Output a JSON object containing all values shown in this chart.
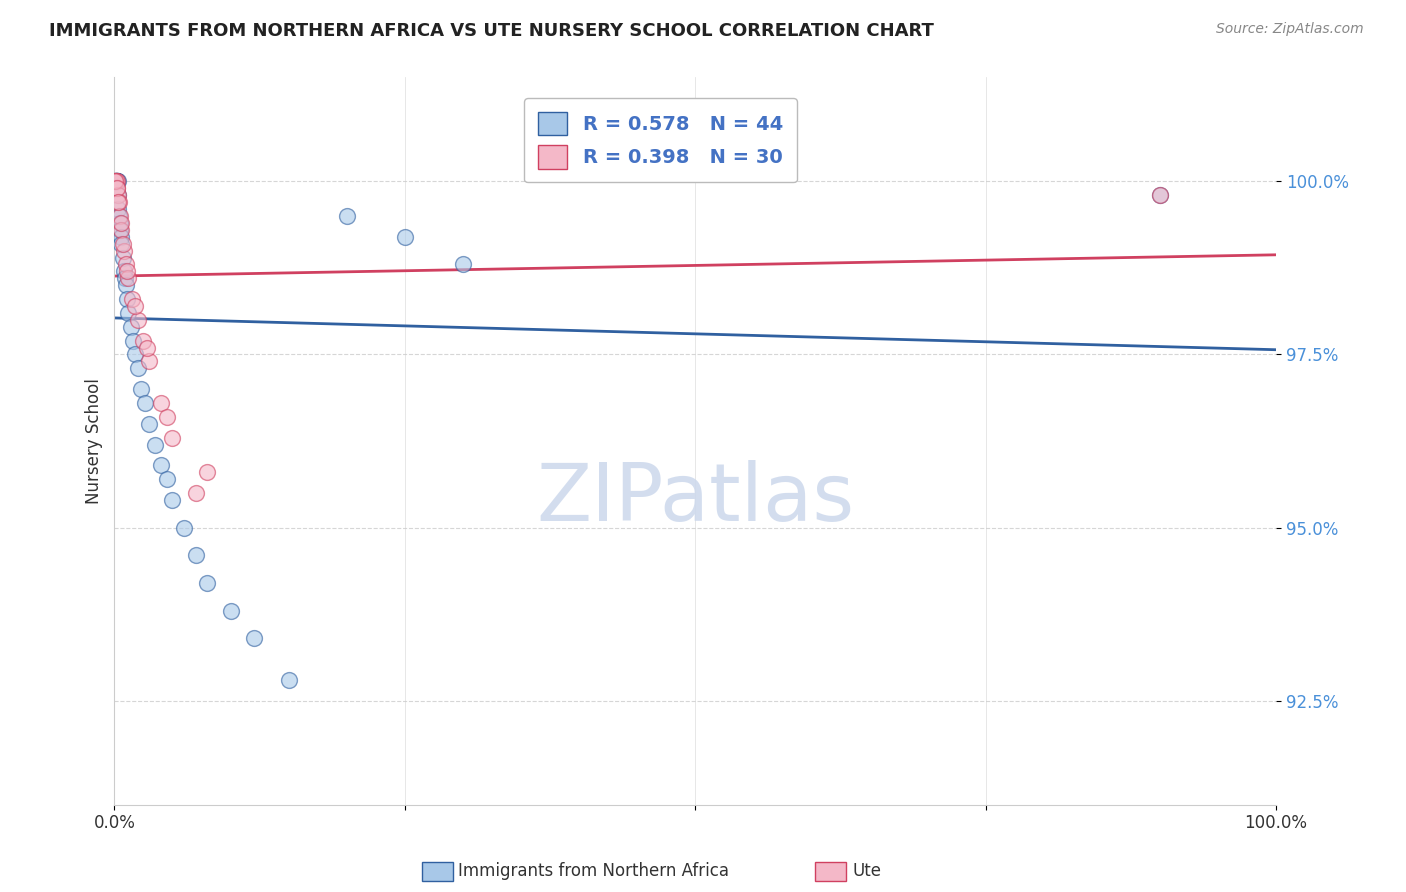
{
  "title": "IMMIGRANTS FROM NORTHERN AFRICA VS UTE NURSERY SCHOOL CORRELATION CHART",
  "source": "Source: ZipAtlas.com",
  "ylabel": "Nursery School",
  "legend_label1": "Immigrants from Northern Africa",
  "legend_label2": "Ute",
  "R1": 0.578,
  "N1": 44,
  "R2": 0.398,
  "N2": 30,
  "color1": "#a8c8e8",
  "color2": "#f4b8c8",
  "trendline_color1": "#3060a0",
  "trendline_color2": "#d04060",
  "xlim": [
    0,
    100
  ],
  "ylim": [
    91.0,
    101.5
  ],
  "yticks": [
    92.5,
    95.0,
    97.5,
    100.0
  ],
  "ytick_labels": [
    "92.5%",
    "95.0%",
    "97.5%",
    "100.0%"
  ],
  "background_color": "#ffffff",
  "grid_color": "#cccccc",
  "scatter1_x": [
    0.05,
    0.08,
    0.1,
    0.12,
    0.15,
    0.18,
    0.2,
    0.22,
    0.25,
    0.28,
    0.3,
    0.35,
    0.4,
    0.45,
    0.5,
    0.55,
    0.6,
    0.7,
    0.8,
    0.9,
    1.0,
    1.1,
    1.2,
    1.4,
    1.6,
    1.8,
    2.0,
    2.3,
    2.6,
    3.0,
    3.5,
    4.0,
    4.5,
    5.0,
    6.0,
    7.0,
    8.0,
    10.0,
    12.0,
    15.0,
    20.0,
    25.0,
    30.0,
    90.0
  ],
  "scatter1_y": [
    100.0,
    100.0,
    100.0,
    100.0,
    100.0,
    100.0,
    100.0,
    100.0,
    100.0,
    100.0,
    99.8,
    99.6,
    99.5,
    99.4,
    99.3,
    99.2,
    99.1,
    98.9,
    98.7,
    98.6,
    98.5,
    98.3,
    98.1,
    97.9,
    97.7,
    97.5,
    97.3,
    97.0,
    96.8,
    96.5,
    96.2,
    95.9,
    95.7,
    95.4,
    95.0,
    94.6,
    94.2,
    93.8,
    93.4,
    92.8,
    99.5,
    99.2,
    98.8,
    99.8
  ],
  "scatter2_x": [
    0.05,
    0.1,
    0.15,
    0.2,
    0.25,
    0.3,
    0.4,
    0.5,
    0.6,
    0.8,
    1.0,
    1.2,
    1.5,
    2.0,
    2.5,
    3.0,
    4.0,
    5.0,
    7.0,
    0.08,
    0.18,
    0.35,
    0.55,
    0.75,
    1.1,
    1.8,
    2.8,
    4.5,
    8.0,
    90.0
  ],
  "scatter2_y": [
    100.0,
    100.0,
    100.0,
    100.0,
    99.9,
    99.8,
    99.7,
    99.5,
    99.3,
    99.0,
    98.8,
    98.6,
    98.3,
    98.0,
    97.7,
    97.4,
    96.8,
    96.3,
    95.5,
    100.0,
    99.9,
    99.7,
    99.4,
    99.1,
    98.7,
    98.2,
    97.6,
    96.6,
    95.8,
    99.8
  ],
  "watermark": "ZIPatlas",
  "watermark_color": "#ccd8ec",
  "legend_text_color": "#4472c4",
  "legend_label_color": "#222222"
}
